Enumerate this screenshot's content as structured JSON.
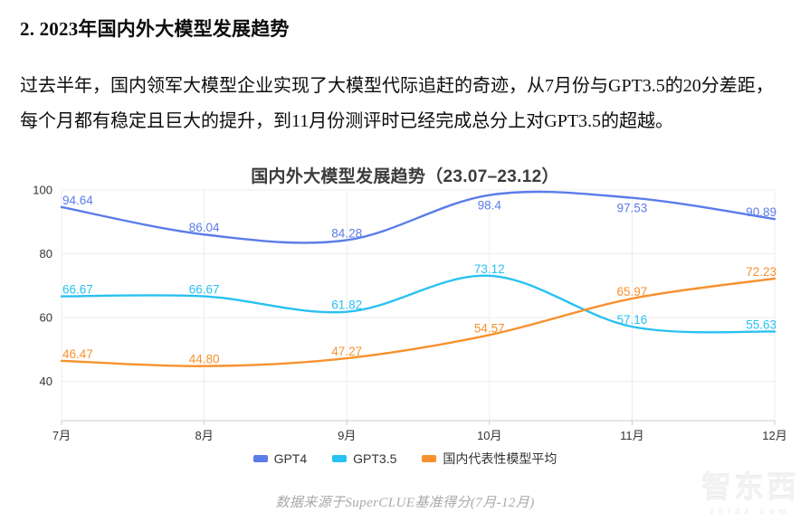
{
  "page": {
    "heading": "2. 2023年国内外大模型发展趋势",
    "paragraph_lines": [
      "过去半年，国内领军大模型企业实现了大模型代际追赶的奇迹，从7月份与GPT3.5的20分差距，",
      "每个月都有稳定且巨大的提升，到11月份测评时已经完成总分上对GPT3.5的超越。"
    ],
    "caption": "数据来源于SuperCLUE基准得分(7月-12月)",
    "watermark": {
      "logo": "智东西",
      "domain": "zhidx.com"
    }
  },
  "chart_data": {
    "type": "line",
    "smooth": true,
    "title": "国内外大模型发展趋势（23.07–23.12）",
    "categories": [
      "7月",
      "8月",
      "9月",
      "10月",
      "11月",
      "12月"
    ],
    "series": [
      {
        "name": "GPT4",
        "color": "#5b7ce9",
        "values": [
          94.64,
          86.04,
          84.28,
          98.4,
          97.53,
          90.89
        ],
        "labels": [
          "94.64",
          "86.04",
          "84.28",
          "98.4",
          "97.53",
          "90.89"
        ]
      },
      {
        "name": "GPT3.5",
        "color": "#29c1f2",
        "values": [
          66.67,
          66.67,
          61.82,
          73.12,
          57.16,
          55.63
        ],
        "labels": [
          "66.67",
          "66.67",
          "61.82",
          "73.12",
          "57.16",
          "55.63"
        ]
      },
      {
        "name": "国内代表性模型平均",
        "color": "#f7912d",
        "values": [
          46.47,
          44.8,
          47.27,
          54.57,
          65.97,
          72.23
        ],
        "labels": [
          "46.47",
          "44.80",
          "47.27",
          "54.57",
          "65.97",
          "72.23"
        ]
      }
    ],
    "yticks": [
      40,
      60,
      80,
      100
    ],
    "ylim": [
      28,
      100
    ],
    "grid": true,
    "legend_position": "bottom",
    "colors": {
      "grid_line": "#ececec",
      "axis_line": "#cccccc",
      "axis_text": "#333333"
    }
  }
}
